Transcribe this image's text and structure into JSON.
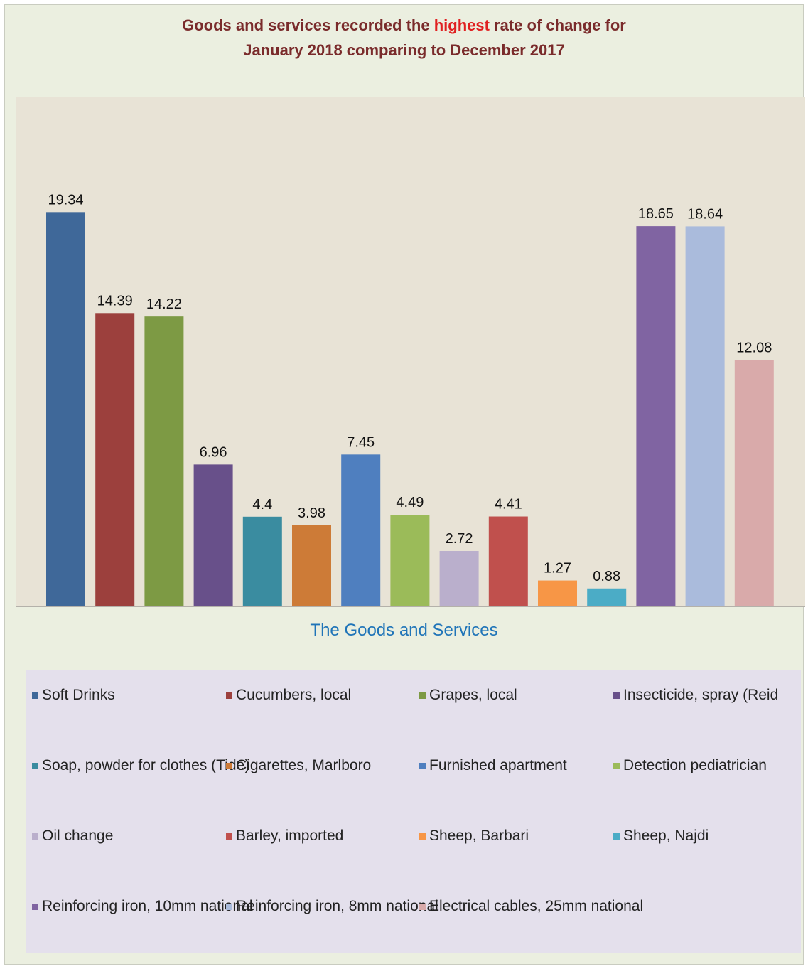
{
  "title": {
    "line1_pre": "Goods and services recorded the ",
    "line1_hl": "highest",
    "line1_post": " rate of change for",
    "line2": "January 2018 comparing to December 2017"
  },
  "chart_data": {
    "type": "bar",
    "xlabel": "The Goods and Services",
    "ylabel": "",
    "ylim": [
      0,
      25
    ],
    "grid": false,
    "legend_position": "bottom",
    "categories": [
      "Soft Drinks",
      "Cucumbers, local",
      "Grapes, local",
      "Insecticide, spray (Reid",
      "Soap, powder for clothes (Tide)",
      "Cigarettes, Marlboro",
      "Furnished apartment",
      "Detection pediatrician",
      "Oil change",
      "Barley, imported",
      "Sheep, Barbari",
      "Sheep, Najdi",
      "Reinforcing iron, 10mm national",
      "Reinforcing iron, 8mm national",
      "Electrical cables, 25mm national"
    ],
    "values": [
      19.34,
      14.39,
      14.22,
      6.96,
      4.4,
      3.98,
      7.45,
      4.49,
      2.72,
      4.41,
      1.27,
      0.88,
      18.65,
      18.64,
      12.08
    ],
    "value_labels": [
      "19.34",
      "14.39",
      "14.22",
      "6.96",
      "4.4",
      "3.98",
      "7.45",
      "4.49",
      "2.72",
      "4.41",
      "1.27",
      "0.88",
      "18.65",
      "18.64",
      "12.08"
    ],
    "colors": [
      "#3f6899",
      "#9c403d",
      "#7d9a44",
      "#68508a",
      "#3a8ca0",
      "#cd7b37",
      "#4f7fbf",
      "#9bbb59",
      "#baafcc",
      "#c0504d",
      "#f79646",
      "#4bacc6",
      "#8064a2",
      "#aabbdc",
      "#d9aaaa"
    ]
  }
}
